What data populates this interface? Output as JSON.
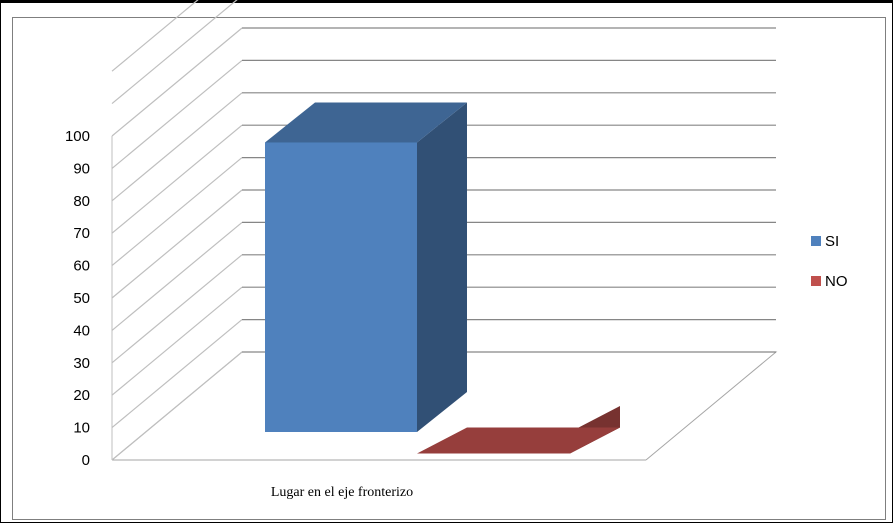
{
  "chart_data": {
    "type": "bar",
    "title": "",
    "xlabel": "",
    "ylabel": "",
    "categories": [
      "Lugar en el eje fronterizo"
    ],
    "series": [
      {
        "name": "SI",
        "values": [
          98
        ],
        "color": "#4f81bd"
      },
      {
        "name": "NO",
        "values": [
          2
        ],
        "color": "#c0504d"
      }
    ],
    "ylim": [
      0,
      100
    ],
    "yticks": [
      "0",
      "10",
      "20",
      "30",
      "40",
      "50",
      "60",
      "70",
      "80",
      "90",
      "100"
    ],
    "grid": true,
    "legend_position": "right",
    "style": "3d-column"
  }
}
